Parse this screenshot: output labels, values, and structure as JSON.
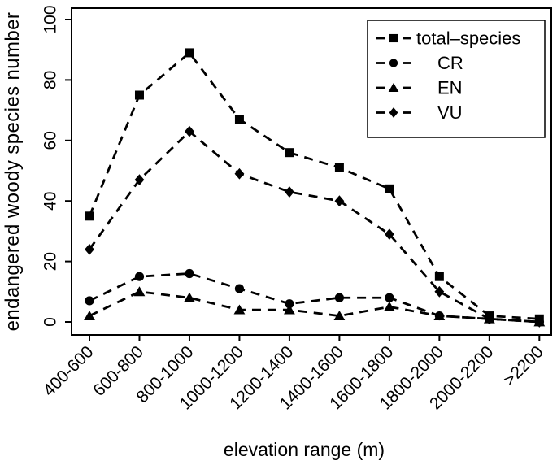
{
  "chart_data": {
    "type": "line",
    "title": "",
    "xlabel": "elevation range (m)",
    "ylabel": "endangered woody species number",
    "categories": [
      "400-600",
      "600-800",
      "800-1000",
      "1000-1200",
      "1200-1400",
      "1400-1600",
      "1600-1800",
      "1800-2000",
      "2000-2200",
      ">2200"
    ],
    "y_ticks": [
      0,
      20,
      40,
      60,
      80,
      100
    ],
    "ylim": [
      0,
      100
    ],
    "grid": false,
    "line_style": "dashed",
    "color": "#000000",
    "background": "#ffffff",
    "legend_position": "top-right",
    "series": [
      {
        "name": "total–species",
        "marker": "square",
        "values": [
          35,
          75,
          89,
          67,
          56,
          51,
          44,
          15,
          2,
          1
        ]
      },
      {
        "name": "CR",
        "marker": "circle",
        "values": [
          7,
          15,
          16,
          11,
          6,
          8,
          8,
          2,
          1,
          0
        ]
      },
      {
        "name": "EN",
        "marker": "triangle",
        "values": [
          2,
          10,
          8,
          4,
          4,
          2,
          5,
          2,
          1,
          0
        ]
      },
      {
        "name": "VU",
        "marker": "diamond",
        "values": [
          24,
          47,
          63,
          49,
          43,
          40,
          29,
          10,
          1,
          0
        ]
      }
    ]
  }
}
